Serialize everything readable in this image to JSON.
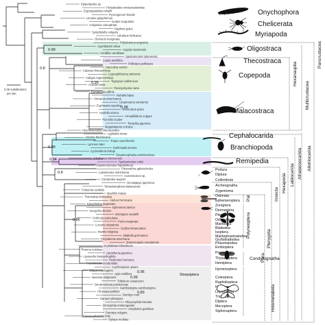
{
  "groups": [
    {
      "name": "Onychophora",
      "color": "#ffffff"
    },
    {
      "name": "Chelicerata",
      "color": "#ffffff"
    },
    {
      "name": "Myriapoda",
      "color": "#ffffff"
    },
    {
      "name": "Oligostraca",
      "color": "#d9f0e6"
    },
    {
      "name": "Thecostraca",
      "color": "#e9e3f4"
    },
    {
      "name": "Copepoda",
      "color": "#e3f0d6"
    },
    {
      "name": "Malacostraca",
      "color": "#d6ecf8"
    },
    {
      "name": "Cephalocarida",
      "color": "#ffffff"
    },
    {
      "name": "Branchiopoda",
      "color": "#bff1f4"
    },
    {
      "name": "Remipedia",
      "color": "#e4ccf0"
    },
    {
      "name": "Pterygota",
      "color": "#fde4d8"
    }
  ],
  "labels": {
    "protura": "Protura",
    "diplura": "Diplura",
    "collembola": "Collembola",
    "archaeognatha": "Archeognatha",
    "zygentoma": "Zygentoma",
    "odonata": "Odonata",
    "ephemeroptera": "Ephemeroptera",
    "zoraptera": "Zoraptera",
    "dermaptera": "Dermaptera",
    "plecoptera": "Plecoptera",
    "orthoptera": "Orthoptera",
    "mantodea": "Mantodea",
    "blattodea": "Blattodea",
    "isoptera": "Isoptera",
    "mantophasmatodea": "Mantophasmatodea",
    "grylloblattodea": "Grylloblattodea",
    "phasmatodea": "Phasmatodea",
    "embioptera": "Embioptera",
    "psocodea": "Psocodea",
    "thysanoptera": "Thysanoptera",
    "hemiptera": "Hemiptera",
    "hymenoptera": "Hymenoptera",
    "coleoptera": "Coleoptera",
    "raphidioptera": "Raphidioptera",
    "neuroptera": "Neuroptera",
    "lepidoptera": "Lepidoptera",
    "trichoptera": "Trichoptera",
    "diptera": "Diptera",
    "mecoptera": "Mecoptera",
    "siphonaptera": "Siphonaptera",
    "strepsiptera": "Strepsiptera"
  },
  "superorders": {
    "palaeoptera": "Pal.",
    "polyneoptera": "Polyneoptera",
    "condylognatha": "Condylognatha",
    "paraneoptera": "Para.",
    "holometabola": "Holometabola"
  },
  "clades": {
    "pancrustacea": "Pancrustacea",
    "allotriocarida": "Allotriocarida",
    "multicrustacea": "Multicrustacea",
    "hexanauplia": "Hexanauplia",
    "athalassocarida": "Athalassocarida",
    "labiocarida": "Labiocarida",
    "hexapoda": "Hexapoda",
    "insecta": "Insecta",
    "pterygota": "Pterygota"
  },
  "scale": {
    "line1": "0.05 substitutions",
    "line2": "per site"
  },
  "support_values": [
    "0.99",
    "0.8",
    "0.95",
    "0.98",
    "0.99",
    "0.94",
    "0.8",
    "0.86",
    "0.96",
    "0.99",
    "0.83"
  ],
  "tip_labels": [
    "Epiperipatus sp.",
    "Peripatoides novaezealandiae",
    "Euperipatoides rowelli",
    "Pycnogonum litorale",
    "Limulus polyphemus",
    "Ixodes scapularis",
    "Achipteria coleoptrata",
    "Daphnia pulex",
    "Symphylella vulgaris",
    "Lithobius forficatus",
    "Glomeris marginata",
    "Polydesmus angustus",
    "Cypridopsis vidua",
    "Argulus siamensis",
    "Armillifer armillatus",
    "Speleonectes tulumensis",
    "Lepas anatifera",
    "Pollicipes pollicipes",
    "Sacculina carcini",
    "Calanus finmarchicus",
    "Lepeophtheirus salmonis",
    "Caligus rogercresseyi",
    "Tigriopus californicus",
    "Acartia tonsa",
    "Paracyclopina nana",
    "Eurytemora affinis",
    "Nebalia bipes",
    "Homarus americanus",
    "Litopenaeus vannamei",
    "Euphausia superba",
    "Gammarus pulex",
    "Hyalella azteca",
    "Armadillidium vulgare",
    "Porcellio scaber",
    "Tetraclita japonica",
    "Megabalanus volcano",
    "Hutchinsoniella macracantha",
    "Lightiella incisa",
    "Artemia franciscana",
    "Triops cancriformis",
    "Lynceus tatei",
    "Eulimnadia texana",
    "Cyclestheria hislopi",
    "Streptocephalus proboscideus",
    "Xibalbanus tulumensis",
    "Speleonectes cokei",
    "Cryptocorynetes haptodiscus",
    "Pleomothra apletocheles",
    "Lasionectes entrichoma",
    "Acerentomon sp.",
    "Campodea augens",
    "Occasjapyx japonicus",
    "Tetrodontophora bielanensis",
    "Folsomia candida",
    "Machilis hrabei",
    "Thermobia domestica",
    "Atelura formicaria",
    "Epiophlebia superstes",
    "Ephemera danica",
    "Isonychia bicolor",
    "Zorotypus caudelli",
    "Forficula auricularia",
    "Perla marginata",
    "Locusta migratoria",
    "Gryllus bimaculatus",
    "Mantis religiosa",
    "Blattella germanica",
    "Periplaneta americana",
    "Zootermopsis nevadensis",
    "Grylloblatta bifratrilecta",
    "Timema cristinae",
    "Aposthonia japonica",
    "Liposcelis bostrychophila",
    "Pediculus humanus",
    "Frankliniella occidentalis",
    "Acyrthosiphon pisum",
    "Nilaparvata lugens",
    "Apis mellifera",
    "Nasonia vitripennis",
    "Tribolium castaneum",
    "Dendroctonus ponderosae",
    "Xanthostigma xanthostigma",
    "Chrysopa pallens",
    "Bombyx mori",
    "Danaus plexippus",
    "Rhyacophila fasciata",
    "Drosophila melanogaster",
    "Anopheles gambiae",
    "Panorpa vulgaris",
    "Ctenocephalides felis",
    "Stylops melittae"
  ]
}
